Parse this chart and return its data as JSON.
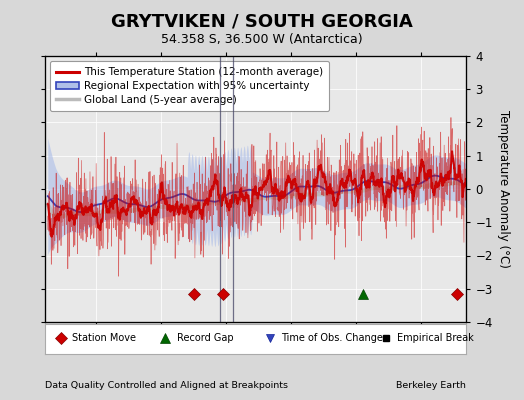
{
  "title": "GRYTVIKEN / SOUTH GEORGIA",
  "subtitle": "54.358 S, 36.500 W (Antarctica)",
  "ylabel": "Temperature Anomaly (°C)",
  "xlabel_note": "Data Quality Controlled and Aligned at Breakpoints",
  "source_note": "Berkeley Earth",
  "ylim": [
    -4,
    4
  ],
  "xlim": [
    1884,
    2014
  ],
  "yticks": [
    -4,
    -3,
    -2,
    -1,
    0,
    1,
    2,
    3,
    4
  ],
  "xticks": [
    1900,
    1920,
    1940,
    1960,
    1980,
    2000
  ],
  "bg_color": "#d8d8d8",
  "plot_bg_color": "#e8e8e8",
  "title_fontsize": 13,
  "subtitle_fontsize": 9,
  "legend_fontsize": 7.5,
  "station_moves": [
    1930,
    1939,
    2011
  ],
  "record_gaps": [
    1982
  ],
  "obs_changes": [],
  "empirical_breaks": [],
  "vertical_lines": [
    1938,
    1942
  ],
  "red_line_color": "#cc0000",
  "blue_line_color": "#3344bb",
  "blue_shade_color": "#b0c0e8",
  "gray_line_color": "#bbbbbb",
  "seed": 42
}
